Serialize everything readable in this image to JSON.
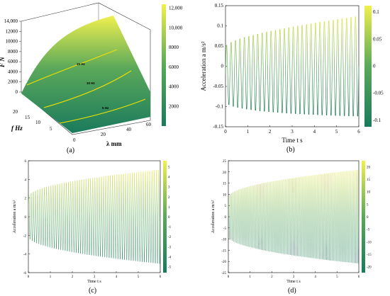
{
  "colors": {
    "low": "#1a7a5c",
    "mid": "#5aa85a",
    "high": "#f0f04e",
    "line": "#f2e000"
  },
  "chart_data": [
    {
      "type": "surface",
      "panel_label": "(a)",
      "zlabel": "F  N",
      "xlabel": "λ mm",
      "ylabel": "f  Hz",
      "zticks": [
        "0",
        "2000",
        "4000",
        "6000",
        "8000",
        "10000",
        "12000",
        "14,000"
      ],
      "x_ticks": [
        "0",
        "20",
        "40",
        "60"
      ],
      "y_ticks": [
        "5",
        "10",
        "15",
        "20"
      ],
      "zlim": [
        0,
        14000
      ],
      "colorbar_ticks": [
        "2000",
        "4000",
        "6000",
        "8000",
        "10,000",
        "12,000"
      ],
      "curves": [
        {
          "label": "5 Hz",
          "f": 5
        },
        {
          "label": "10 Hz",
          "f": 10
        },
        {
          "label": "15 Hz",
          "f": 15
        }
      ]
    },
    {
      "type": "line",
      "panel_label": "(b)",
      "xlabel": "Time t  s",
      "ylabel": "Acceleration a  m/s²",
      "x_ticks": [
        "0",
        "1",
        "2",
        "3",
        "4",
        "5",
        "6"
      ],
      "y_ticks": [
        "-0.15",
        "-0.1",
        "-0.05",
        "0",
        "0.05",
        "0.1",
        "0.15"
      ],
      "xlim": [
        0,
        6
      ],
      "ylim": [
        -0.15,
        0.15
      ],
      "colorbar_ticks": [
        "-0.1",
        "-0.05",
        "0",
        "0.05",
        "0.1"
      ],
      "series": [
        {
          "frequency_hz": 5,
          "amp_start": 0.07,
          "amp_end": 0.13,
          "offset_start": -0.02,
          "offset_end": 0.0
        }
      ]
    },
    {
      "type": "line",
      "panel_label": "(c)",
      "xlabel": "Time t  s",
      "ylabel": "Acceleration a  m/s²",
      "x_ticks": [
        "0",
        "1",
        "2",
        "3",
        "4",
        "5",
        "6"
      ],
      "y_ticks": [
        "-6",
        "-4",
        "-2",
        "0",
        "2",
        "4",
        "6"
      ],
      "xlim": [
        0,
        6
      ],
      "ylim": [
        -6,
        6
      ],
      "colorbar_ticks": [
        "-5",
        "-4",
        "-3",
        "-2",
        "-1",
        "0",
        "1",
        "2",
        "3",
        "4",
        "5"
      ],
      "series": [
        {
          "frequency_hz": 10,
          "amp_start": 2.2,
          "amp_end": 5.3,
          "offset_start": 0.0,
          "offset_end": 0.0
        }
      ]
    },
    {
      "type": "line",
      "panel_label": "(d)",
      "xlabel": "Time t  s",
      "ylabel": "Acceleration a  m/s²",
      "x_ticks": [
        "0",
        "1",
        "2",
        "3",
        "4",
        "5",
        "6"
      ],
      "y_ticks": [
        "-25",
        "-20",
        "-15",
        "-10",
        "-5",
        "0",
        "5",
        "10",
        "15",
        "20",
        "25"
      ],
      "xlim": [
        0,
        6
      ],
      "ylim": [
        -25,
        25
      ],
      "colorbar_ticks": [
        "-20",
        "-15",
        "-10",
        "-5",
        "0",
        "5",
        "10",
        "15",
        "20"
      ],
      "series": [
        {
          "frequency_hz": 15,
          "amp_start": 9,
          "amp_end": 22,
          "offset_start": 0.0,
          "offset_end": 0.0
        }
      ]
    }
  ]
}
